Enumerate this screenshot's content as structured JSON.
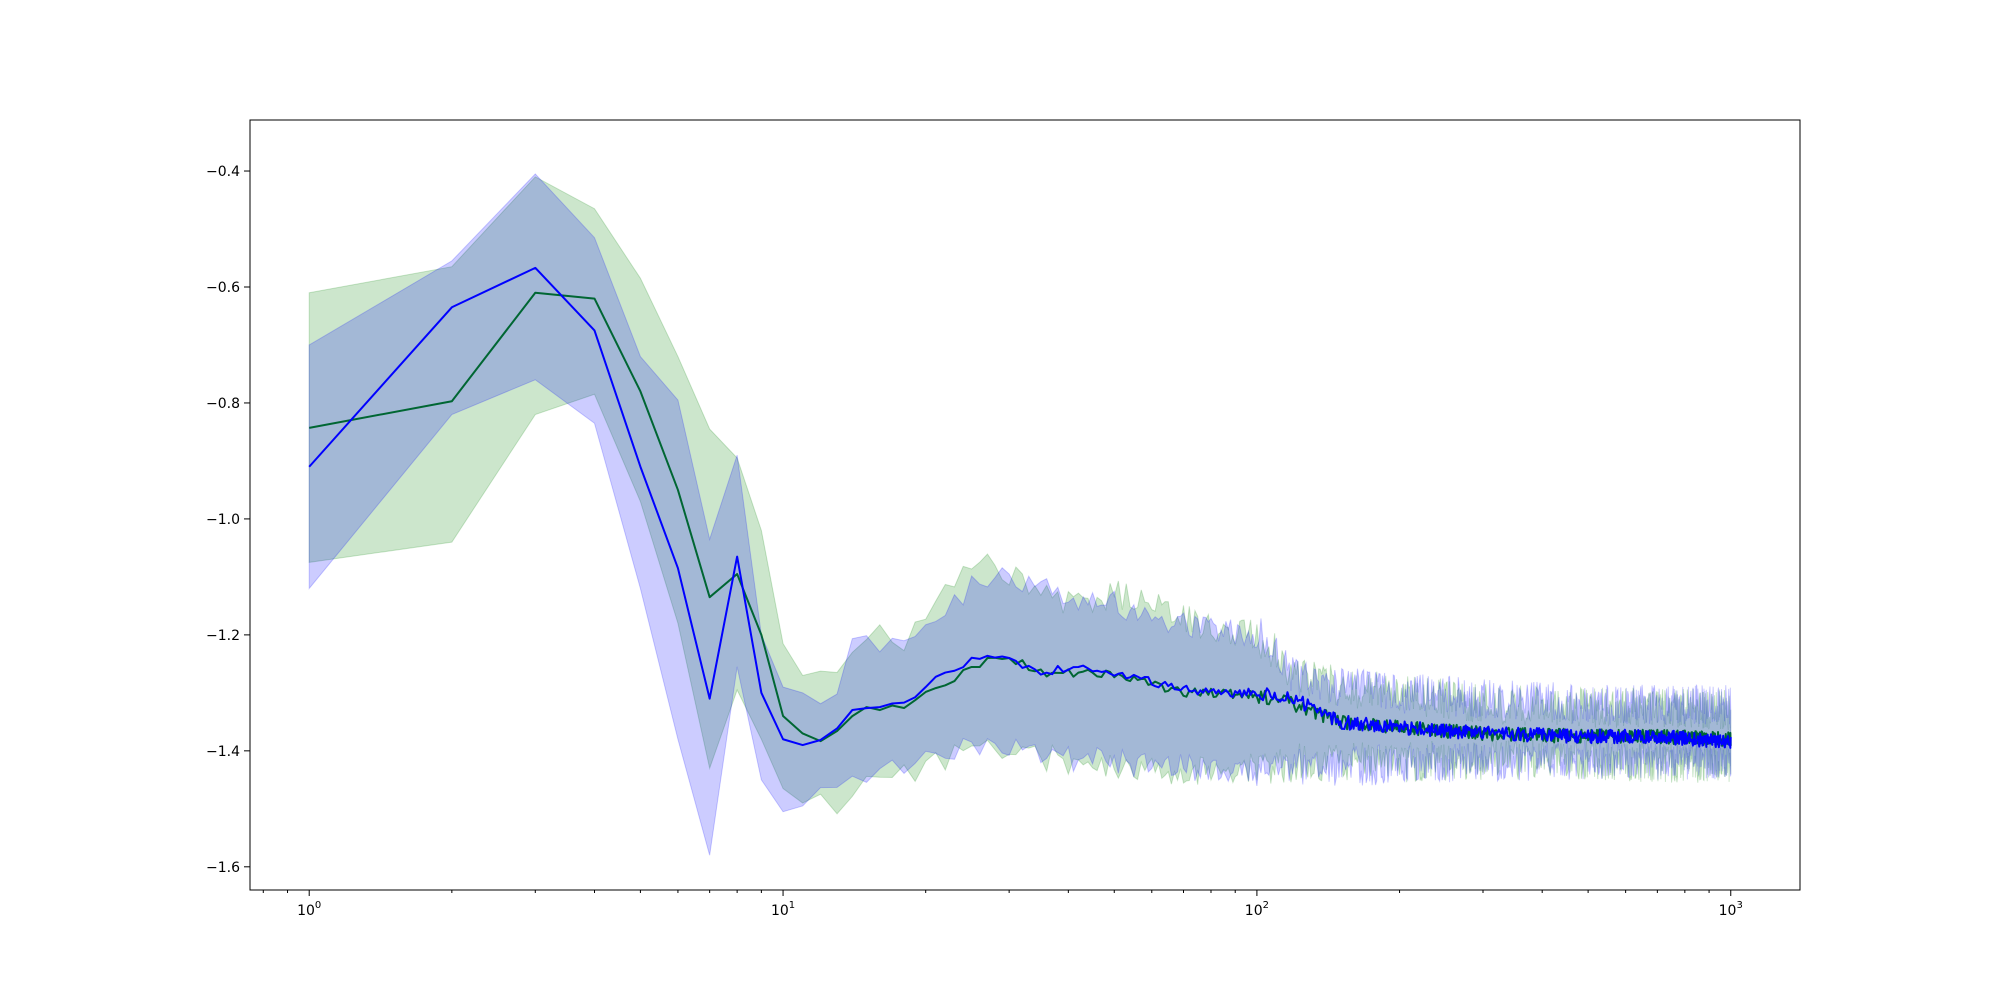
{
  "chart_data": {
    "type": "line",
    "title": "",
    "xlabel": "",
    "ylabel": "",
    "xscale": "log",
    "xlim": [
      0.75,
      1400
    ],
    "ylim": [
      -1.64,
      -0.312
    ],
    "grid": false,
    "legend": "none",
    "x_ticks": [
      {
        "value": 1,
        "base": "10",
        "exp": "0"
      },
      {
        "value": 10,
        "base": "10",
        "exp": "1"
      },
      {
        "value": 100,
        "base": "10",
        "exp": "2"
      },
      {
        "value": 1000,
        "base": "10",
        "exp": "3"
      }
    ],
    "y_ticks": [
      {
        "value": -0.4,
        "label": "−0.4"
      },
      {
        "value": -0.6,
        "label": "−0.6"
      },
      {
        "value": -0.8,
        "label": "−0.8"
      },
      {
        "value": -1.0,
        "label": "−1.0"
      },
      {
        "value": -1.2,
        "label": "−1.2"
      },
      {
        "value": -1.4,
        "label": "−1.4"
      },
      {
        "value": -1.6,
        "label": "−1.6"
      }
    ],
    "series": [
      {
        "color": "#008000",
        "band_color": "#008000",
        "band_opacity": 0.2,
        "x": [
          1,
          2,
          3,
          4,
          5,
          6,
          7,
          8,
          9,
          10,
          11,
          12,
          13,
          14,
          15,
          18,
          20,
          22,
          25,
          27,
          30,
          35,
          40,
          50,
          60,
          70,
          80,
          100,
          110,
          120,
          150,
          200,
          300,
          500,
          700,
          1000
        ],
        "y": [
          -0.843,
          -0.797,
          -0.61,
          -0.62,
          -0.78,
          -0.95,
          -1.135,
          -1.095,
          -1.2,
          -1.34,
          -1.37,
          -1.38,
          -1.37,
          -1.345,
          -1.33,
          -1.32,
          -1.3,
          -1.28,
          -1.26,
          -1.245,
          -1.24,
          -1.265,
          -1.265,
          -1.27,
          -1.285,
          -1.3,
          -1.3,
          -1.305,
          -1.31,
          -1.32,
          -1.35,
          -1.36,
          -1.37,
          -1.375,
          -1.375,
          -1.38
        ],
        "upper": [
          -0.61,
          -0.565,
          -0.41,
          -0.465,
          -0.585,
          -0.72,
          -0.845,
          -0.895,
          -1.02,
          -1.215,
          -1.27,
          -1.27,
          -1.245,
          -1.215,
          -1.2,
          -1.215,
          -1.17,
          -1.13,
          -1.08,
          -1.08,
          -1.1,
          -1.11,
          -1.15,
          -1.13,
          -1.14,
          -1.17,
          -1.19,
          -1.2,
          -1.23,
          -1.27,
          -1.29,
          -1.3,
          -1.32,
          -1.325,
          -1.325,
          -1.33
        ],
        "lower": [
          -1.075,
          -1.04,
          -0.82,
          -0.785,
          -0.97,
          -1.18,
          -1.43,
          -1.295,
          -1.38,
          -1.465,
          -1.49,
          -1.495,
          -1.495,
          -1.47,
          -1.45,
          -1.44,
          -1.42,
          -1.41,
          -1.405,
          -1.395,
          -1.4,
          -1.41,
          -1.42,
          -1.425,
          -1.43,
          -1.44,
          -1.43,
          -1.43,
          -1.42,
          -1.42,
          -1.42,
          -1.42,
          -1.415,
          -1.415,
          -1.42,
          -1.42
        ]
      },
      {
        "color": "#0000ff",
        "band_color": "#0000ff",
        "band_opacity": 0.2,
        "x": [
          1,
          2,
          3,
          4,
          5,
          6,
          7,
          8,
          9,
          10,
          11,
          12,
          13,
          14,
          15,
          18,
          20,
          22,
          25,
          27,
          30,
          35,
          40,
          50,
          60,
          70,
          80,
          100,
          110,
          120,
          150,
          200,
          300,
          500,
          700,
          1000
        ],
        "y": [
          -0.91,
          -0.635,
          -0.567,
          -0.675,
          -0.91,
          -1.085,
          -1.31,
          -1.065,
          -1.3,
          -1.38,
          -1.39,
          -1.385,
          -1.355,
          -1.33,
          -1.325,
          -1.31,
          -1.29,
          -1.27,
          -1.245,
          -1.235,
          -1.24,
          -1.27,
          -1.255,
          -1.265,
          -1.28,
          -1.295,
          -1.3,
          -1.3,
          -1.305,
          -1.31,
          -1.35,
          -1.36,
          -1.37,
          -1.375,
          -1.375,
          -1.385
        ],
        "upper": [
          -0.7,
          -0.555,
          -0.405,
          -0.515,
          -0.72,
          -0.795,
          -1.035,
          -0.89,
          -1.2,
          -1.29,
          -1.3,
          -1.3,
          -1.28,
          -1.22,
          -1.21,
          -1.22,
          -1.19,
          -1.16,
          -1.12,
          -1.1,
          -1.1,
          -1.12,
          -1.14,
          -1.14,
          -1.17,
          -1.18,
          -1.19,
          -1.2,
          -1.23,
          -1.27,
          -1.29,
          -1.3,
          -1.31,
          -1.32,
          -1.32,
          -1.32
        ],
        "lower": [
          -1.12,
          -0.82,
          -0.76,
          -0.835,
          -1.12,
          -1.38,
          -1.58,
          -1.255,
          -1.45,
          -1.505,
          -1.495,
          -1.48,
          -1.45,
          -1.43,
          -1.44,
          -1.43,
          -1.41,
          -1.39,
          -1.39,
          -1.38,
          -1.385,
          -1.4,
          -1.41,
          -1.42,
          -1.425,
          -1.43,
          -1.43,
          -1.43,
          -1.43,
          -1.43,
          -1.43,
          -1.42,
          -1.42,
          -1.415,
          -1.415,
          -1.415
        ]
      }
    ]
  }
}
